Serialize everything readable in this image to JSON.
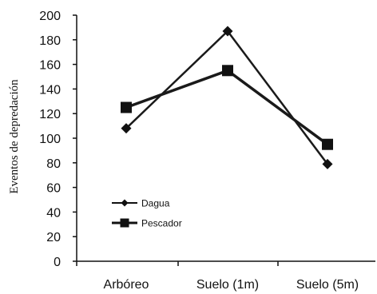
{
  "chart_data": {
    "type": "line",
    "title": "",
    "xlabel": "",
    "ylabel": "Eventos de depredación",
    "categories": [
      "Arbóreo",
      "Suelo (1m)",
      "Suelo (5m)"
    ],
    "ylim": [
      0,
      200
    ],
    "yticks": [
      0,
      20,
      40,
      60,
      80,
      100,
      120,
      140,
      160,
      180,
      200
    ],
    "grid": false,
    "legend_position": "lower-left",
    "series": [
      {
        "name": "Dagua",
        "marker": "diamond",
        "color": "#1a1a1a",
        "values": [
          108,
          187,
          79
        ]
      },
      {
        "name": "Pescador",
        "marker": "square",
        "color": "#1a1a1a",
        "values": [
          125,
          155,
          95
        ]
      }
    ]
  }
}
